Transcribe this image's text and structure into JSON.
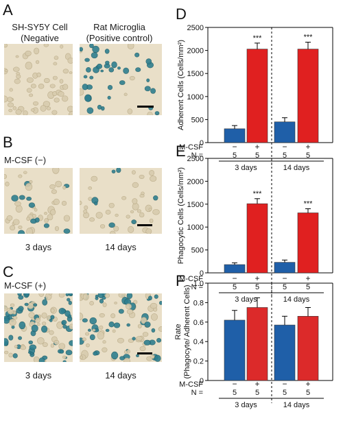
{
  "panels": {
    "a_label": "A",
    "b_label": "B",
    "c_label": "C",
    "d_label": "D",
    "e_label": "E",
    "f_label": "F"
  },
  "panel_a": {
    "left_title": "SH-SY5Y Cell",
    "left_sub": "(Negative control)",
    "right_title": "Rat Microglia",
    "right_sub": "(Positive control)"
  },
  "panel_b": {
    "title": "M-CSF (−)",
    "left_caption": "3 days",
    "right_caption": "14 days"
  },
  "panel_c": {
    "title": "M-CSF (+)",
    "left_caption": "3 days",
    "right_caption": "14 days"
  },
  "colors": {
    "blue": "#1f5fa8",
    "red": "#e02020",
    "red_f": "#dc2a2a"
  },
  "table_rows": {
    "mcsf_label": "M-CSF",
    "n_label": "N ="
  },
  "chart_data": [
    {
      "type": "bar",
      "panel": "D",
      "ylabel": "Adherent Cells (Cells/mm²)",
      "ylim": [
        0,
        2500
      ],
      "yticks": [
        "0",
        "500",
        "1000",
        "1500",
        "2000",
        "2500"
      ],
      "groups": [
        "3 days",
        "14 days"
      ],
      "mcsf": [
        "−",
        "+",
        "−",
        "+"
      ],
      "n": [
        "5",
        "5",
        "5",
        "5"
      ],
      "values": [
        300,
        2030,
        450,
        2030
      ],
      "errors": [
        70,
        130,
        90,
        150
      ],
      "significance": [
        "",
        "***",
        "",
        "***"
      ]
    },
    {
      "type": "bar",
      "panel": "E",
      "ylabel": "Phagocytic Cells (Cells/mm²)",
      "ylim": [
        0,
        2500
      ],
      "yticks": [
        "0",
        "500",
        "1000",
        "1500",
        "2000",
        "2500"
      ],
      "groups": [
        "3 days",
        "14 days"
      ],
      "mcsf": [
        "−",
        "+",
        "−",
        "+"
      ],
      "n": [
        "5",
        "5",
        "5",
        "5"
      ],
      "values": [
        180,
        1510,
        230,
        1310
      ],
      "errors": [
        40,
        110,
        50,
        90
      ],
      "significance": [
        "",
        "***",
        "",
        "***"
      ]
    },
    {
      "type": "bar",
      "panel": "F",
      "ylabel": "Rate",
      "ylabel2": "(Phagocyte/ Adherent Cells)",
      "ylim": [
        0,
        1.0
      ],
      "yticks": [
        "0",
        "0.2",
        "0.4",
        "0.6",
        "0.8",
        "1.0"
      ],
      "groups": [
        "3 days",
        "14 days"
      ],
      "mcsf": [
        "−",
        "+",
        "−",
        "+"
      ],
      "n": [
        "5",
        "5",
        "5",
        "5"
      ],
      "values": [
        0.62,
        0.75,
        0.57,
        0.66
      ],
      "errors": [
        0.1,
        0.1,
        0.09,
        0.09
      ],
      "significance": [
        "",
        "",
        "",
        ""
      ]
    }
  ]
}
